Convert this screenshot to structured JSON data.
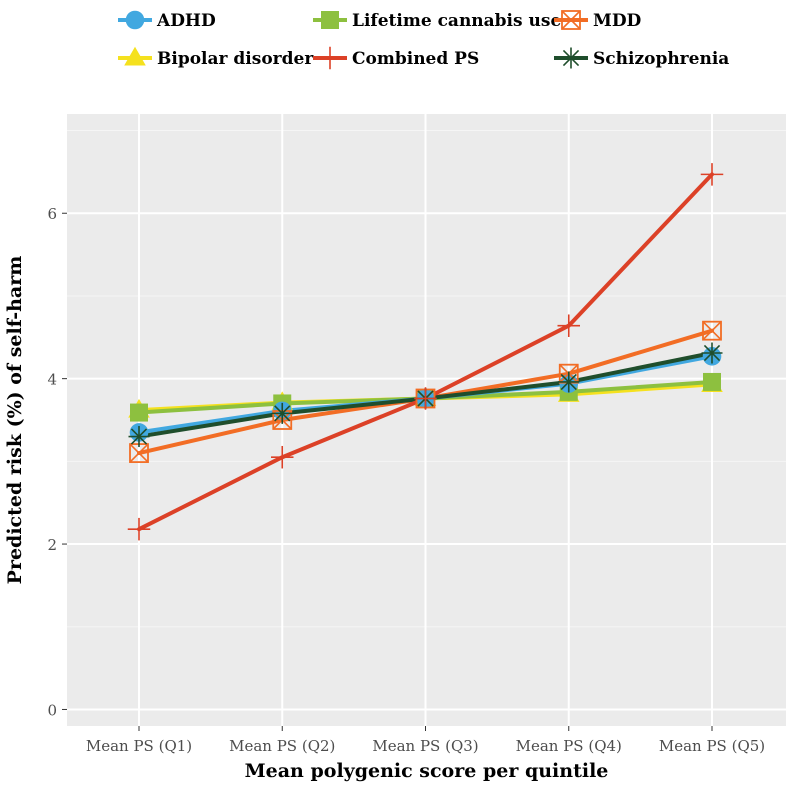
{
  "chart_data": {
    "type": "line",
    "title": "",
    "xlabel": "Mean polygenic score per quintile",
    "ylabel": "Predicted risk (%) of self-harm",
    "categories": [
      "Mean PS (Q1)",
      "Mean PS (Q2)",
      "Mean PS (Q3)",
      "Mean PS (Q4)",
      "Mean PS (Q5)"
    ],
    "ylim": [
      -0.2,
      7.2
    ],
    "yticks": [
      0,
      2,
      4,
      6
    ],
    "grid": true,
    "legend_position": "top",
    "series": [
      {
        "name": "Bipolar disorder",
        "color": "#F5E11E",
        "marker": "triangle",
        "values": [
          3.62,
          3.71,
          3.76,
          3.81,
          3.93
        ]
      },
      {
        "name": "Lifetime cannabis use",
        "color": "#8DC03F",
        "marker": "square",
        "values": [
          3.59,
          3.7,
          3.76,
          3.84,
          3.96
        ]
      },
      {
        "name": "ADHD",
        "color": "#41A8E0",
        "marker": "circle",
        "values": [
          3.35,
          3.61,
          3.76,
          3.94,
          4.27
        ]
      },
      {
        "name": "MDD",
        "color": "#F26D25",
        "marker": "square-cross",
        "values": [
          3.1,
          3.5,
          3.76,
          4.06,
          4.58
        ]
      },
      {
        "name": "Schizophrenia",
        "color": "#1F4E2C",
        "marker": "asterisk",
        "values": [
          3.3,
          3.58,
          3.76,
          3.96,
          4.31
        ]
      },
      {
        "name": "Combined PS",
        "color": "#DC4127",
        "marker": "plus",
        "values": [
          2.18,
          3.05,
          3.76,
          4.64,
          6.47
        ]
      }
    ]
  }
}
